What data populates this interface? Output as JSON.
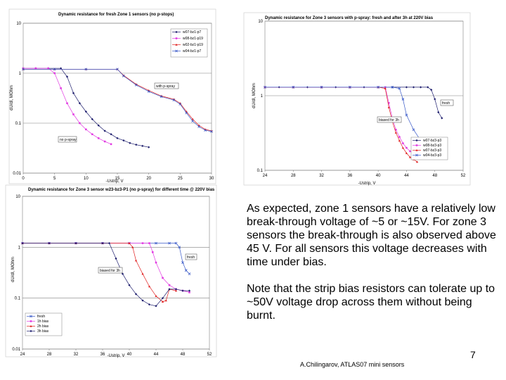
{
  "text": {
    "paragraph_1": "As expected, zone 1 sensors have a relatively low break-through voltage of ~5 or ~15V. For zone 3 sensors the break-through is also observed above 45 V.  For all sensors this voltage decreases with time under bias.",
    "paragraph_2": "Note that the strip bias resistors can tolerate up to ~50V voltage drop across them without being burnt.",
    "page_number": "7",
    "footer_credit": "A.Chilingarov, ATLAS07 mini sensors"
  },
  "colors": {
    "navy": "#1f1f6e",
    "magenta": "#e23be2",
    "red": "#e02020",
    "blue": "#3a5ac8",
    "grid": "#808080"
  },
  "chart_data": [
    {
      "id": "chart1",
      "type": "line",
      "title": "Dynamic resistance for fresh Zone 1 sensors (no p-stops)",
      "xlabel": "-Ustrip, V",
      "ylabel": "dU/dI, MOhm",
      "x_scale": "linear",
      "y_scale": "log",
      "xlim": [
        0,
        30
      ],
      "ylim": [
        0.01,
        10
      ],
      "x_ticks": [
        0,
        5,
        10,
        15,
        20,
        25,
        30
      ],
      "y_ticks": [
        0.01,
        0.1,
        1,
        10
      ],
      "y_tick_labels": [
        "0.01",
        "0.1",
        "1",
        "10"
      ],
      "grid": "horizontal",
      "legend_position": "top-right",
      "annotations": [
        "with p-spray",
        "no p-spray"
      ],
      "series": [
        {
          "name": "w07-bz1-p7",
          "color": "#1f1f6e",
          "marker": "diamond",
          "x": [
            0,
            2,
            4,
            6,
            7,
            8,
            9,
            10,
            11,
            12,
            13,
            14,
            15,
            16,
            17,
            18,
            19,
            20
          ],
          "y": [
            1.25,
            1.25,
            1.25,
            1.25,
            0.85,
            0.4,
            0.25,
            0.17,
            0.12,
            0.09,
            0.07,
            0.06,
            0.05,
            0.045,
            0.04,
            0.037,
            0.035,
            0.033
          ]
        },
        {
          "name": "w08-bz1-p19",
          "color": "#e23be2",
          "marker": "square",
          "x": [
            0,
            2,
            4,
            5,
            6,
            7,
            8,
            9,
            10,
            11,
            12,
            13,
            14
          ],
          "y": [
            1.25,
            1.25,
            1.25,
            1.0,
            0.5,
            0.25,
            0.15,
            0.1,
            0.075,
            0.06,
            0.05,
            0.043,
            0.038
          ]
        },
        {
          "name": "w02-bz1-p19",
          "color": "#e02020",
          "marker": "triangle",
          "x": [
            0,
            5,
            10,
            15,
            16,
            18,
            20,
            22,
            24,
            25,
            26,
            27,
            28,
            29,
            30
          ],
          "y": [
            1.2,
            1.2,
            1.2,
            1.2,
            0.9,
            0.6,
            0.45,
            0.35,
            0.3,
            0.25,
            0.17,
            0.12,
            0.09,
            0.075,
            0.07
          ]
        },
        {
          "name": "w04-bz1-p7",
          "color": "#3a5ac8",
          "marker": "cross",
          "x": [
            0,
            5,
            10,
            15,
            16,
            18,
            20,
            22,
            24,
            25,
            26,
            27,
            28,
            29,
            30
          ],
          "y": [
            1.2,
            1.2,
            1.2,
            1.2,
            0.88,
            0.58,
            0.43,
            0.34,
            0.29,
            0.24,
            0.16,
            0.11,
            0.085,
            0.072,
            0.068
          ]
        }
      ]
    },
    {
      "id": "chart2",
      "type": "line",
      "title": "Dynamic resistance for Zone 3 sensors with p-spray: fresh and after 3h at 220V bias",
      "xlabel": "-Ustrip, V",
      "ylabel": "dU/dI, MOhm",
      "x_scale": "linear",
      "y_scale": "log",
      "xlim": [
        24,
        52
      ],
      "ylim": [
        0.1,
        10
      ],
      "x_ticks": [
        24,
        28,
        32,
        36,
        40,
        44,
        48,
        52
      ],
      "y_ticks": [
        0.1,
        1,
        10
      ],
      "y_tick_labels": [
        "0.1",
        "1",
        "10"
      ],
      "grid": "horizontal",
      "legend_position": "bottom-right",
      "annotations": [
        "fresh",
        "biased for 3h"
      ],
      "series": [
        {
          "name": "w07-bz3-p3",
          "color": "#1f1f6e",
          "marker": "diamond",
          "x": [
            24,
            26,
            28,
            30,
            32,
            34,
            36,
            38,
            40,
            42,
            44,
            45,
            46,
            47,
            47.5,
            48,
            48.5,
            49
          ],
          "y": [
            1.3,
            1.3,
            1.3,
            1.3,
            1.3,
            1.3,
            1.3,
            1.3,
            1.3,
            1.3,
            1.3,
            1.3,
            1.3,
            1.3,
            1.2,
            0.9,
            0.6,
            0.5
          ]
        },
        {
          "name": "w08-bz3-p3",
          "color": "#e23be2",
          "marker": "square",
          "x": [
            24,
            28,
            32,
            36,
            40,
            41,
            41.5,
            42,
            42.5,
            43,
            43.5,
            44,
            44.5,
            45,
            45.5,
            46
          ],
          "y": [
            1.3,
            1.3,
            1.3,
            1.3,
            1.3,
            1.3,
            0.8,
            0.5,
            0.35,
            0.28,
            0.23,
            0.2,
            0.18,
            0.17,
            0.16,
            0.155
          ]
        },
        {
          "name": "w07-bz3-p3",
          "color": "#e02020",
          "marker": "triangle",
          "x": [
            24,
            28,
            32,
            36,
            40,
            41,
            41.5,
            42,
            42.5,
            43,
            43.5,
            44,
            44.5,
            45,
            45.5
          ],
          "y": [
            1.3,
            1.3,
            1.3,
            1.3,
            1.3,
            1.25,
            0.7,
            0.45,
            0.32,
            0.25,
            0.2,
            0.17,
            0.15,
            0.14,
            0.13
          ]
        },
        {
          "name": "w04-bz3-p3",
          "color": "#3a5ac8",
          "marker": "cross",
          "x": [
            24,
            28,
            32,
            36,
            40,
            42,
            43,
            43.5,
            44,
            45,
            46,
            47,
            48,
            49
          ],
          "y": [
            1.3,
            1.3,
            1.3,
            1.3,
            1.3,
            1.3,
            1.25,
            0.9,
            0.55,
            0.35,
            0.25,
            0.2,
            0.17,
            0.15
          ]
        }
      ]
    },
    {
      "id": "chart3",
      "type": "line",
      "title": "Dynamic resistance for Zone 3 sensor w23-bz3-P1 (no p-spray) for different time @ 220V bias",
      "xlabel": "-Ustrip, V",
      "ylabel": "dU/dI, MOhm",
      "x_scale": "linear",
      "y_scale": "log",
      "xlim": [
        24,
        52
      ],
      "ylim": [
        0.01,
        10
      ],
      "x_ticks": [
        24,
        28,
        32,
        36,
        40,
        44,
        48,
        52
      ],
      "y_ticks": [
        0.01,
        0.1,
        1,
        10
      ],
      "y_tick_labels": [
        "0.01",
        "0.1",
        "1",
        "10"
      ],
      "grid": "horizontal",
      "legend_position": "bottom-left",
      "annotations": [
        "fresh",
        "biased for 3h"
      ],
      "series": [
        {
          "name": "fresh",
          "color": "#3a5ac8",
          "marker": "cross",
          "x": [
            24,
            28,
            32,
            36,
            40,
            44,
            46,
            47,
            47.5,
            48,
            48.5,
            49
          ],
          "y": [
            1.2,
            1.2,
            1.2,
            1.2,
            1.2,
            1.2,
            1.2,
            1.2,
            1.0,
            0.5,
            0.35,
            0.3
          ]
        },
        {
          "name": "1h bias",
          "color": "#e23be2",
          "marker": "square",
          "x": [
            24,
            28,
            32,
            36,
            40,
            42,
            43,
            43.5,
            44,
            45,
            46,
            47,
            48,
            49
          ],
          "y": [
            1.2,
            1.2,
            1.2,
            1.2,
            1.2,
            1.2,
            1.2,
            0.8,
            0.5,
            0.25,
            0.18,
            0.15,
            0.14,
            0.13
          ]
        },
        {
          "name": "2h bias",
          "color": "#e02020",
          "marker": "triangle",
          "x": [
            24,
            28,
            32,
            36,
            40,
            40.5,
            41,
            42,
            43,
            44,
            45,
            45.5,
            46,
            47
          ],
          "y": [
            1.2,
            1.2,
            1.2,
            1.2,
            1.2,
            1.0,
            0.55,
            0.3,
            0.17,
            0.11,
            0.085,
            0.09,
            0.15,
            0.14
          ]
        },
        {
          "name": "3h bias",
          "color": "#1f1f6e",
          "marker": "diamond",
          "x": [
            24,
            28,
            32,
            36,
            37,
            38,
            39,
            40,
            41,
            42,
            43,
            44,
            45,
            46,
            47,
            48,
            49
          ],
          "y": [
            1.2,
            1.2,
            1.2,
            1.2,
            1.2,
            0.6,
            0.3,
            0.18,
            0.12,
            0.09,
            0.075,
            0.07,
            0.1,
            0.15,
            0.15,
            0.14,
            0.14
          ]
        }
      ]
    }
  ]
}
